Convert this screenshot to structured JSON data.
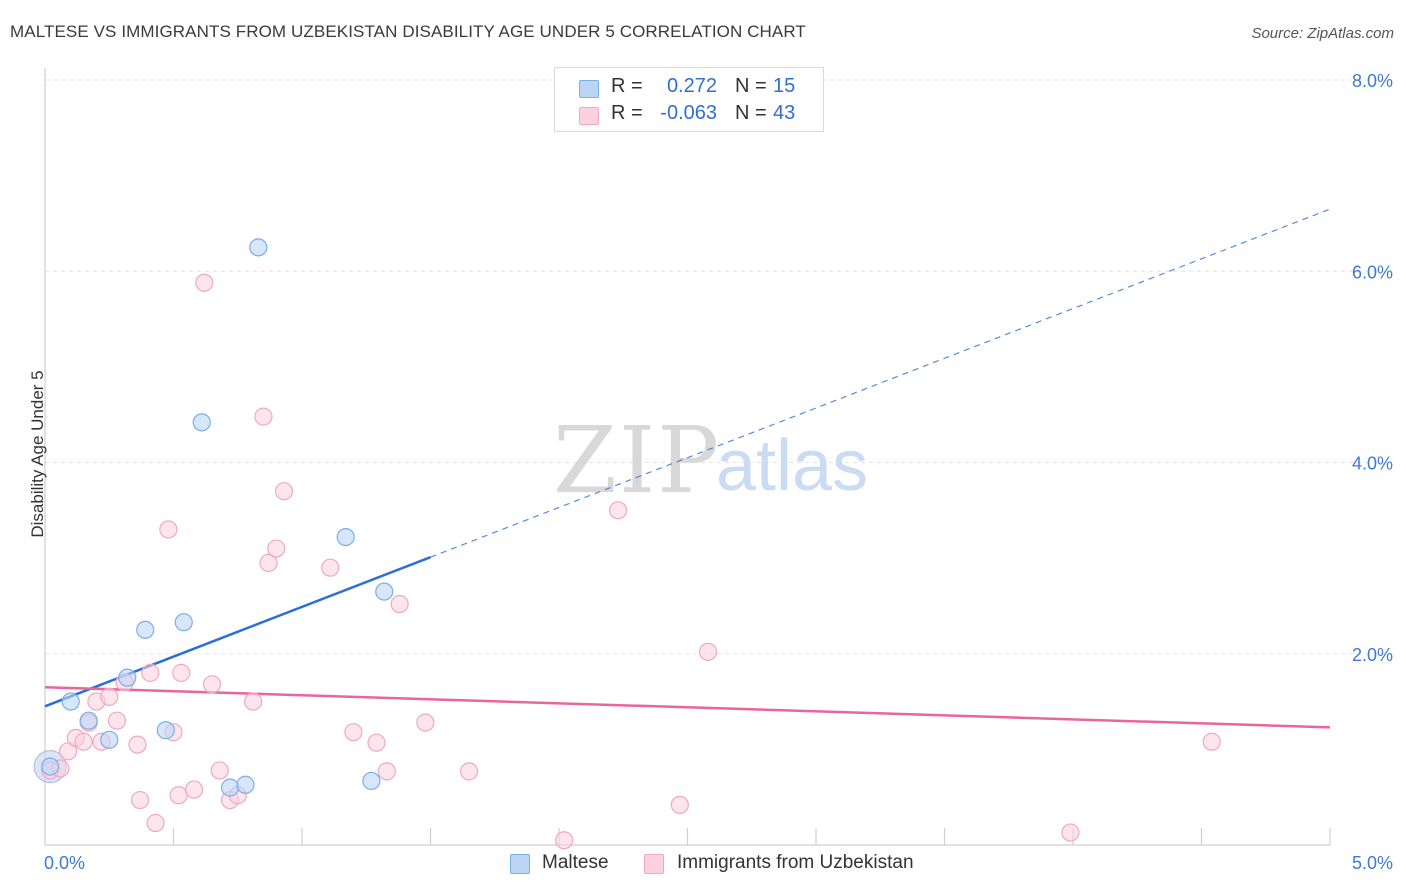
{
  "title": "MALTESE VS IMMIGRANTS FROM UZBEKISTAN DISABILITY AGE UNDER 5 CORRELATION CHART",
  "source": "Source: ZipAtlas.com",
  "watermark": {
    "zip": "ZIP",
    "atlas": "atlas"
  },
  "legend_top": {
    "rows": [
      {
        "r_label": "R =",
        "r_value": "0.272",
        "n_label": "N =",
        "n_value": "15"
      },
      {
        "r_label": "R =",
        "r_value": "-0.063",
        "n_label": "N =",
        "n_value": "43"
      }
    ]
  },
  "legend_bottom": {
    "items": [
      "Maltese",
      "Immigrants from Uzbekistan"
    ]
  },
  "chart_data": {
    "type": "scatter",
    "title": "MALTESE VS IMMIGRANTS FROM UZBEKISTAN DISABILITY AGE UNDER 5 CORRELATION CHART",
    "ylabel": "Disability Age Under 5",
    "xlabel": "",
    "xlim": [
      0,
      5
    ],
    "ylim": [
      0,
      8
    ],
    "x_tick_labels": [
      "0.0%",
      "5.0%"
    ],
    "y_tick_labels": [
      "2.0%",
      "4.0%",
      "6.0%",
      "8.0%"
    ],
    "y_ticks": [
      2,
      4,
      6,
      8
    ],
    "grid": true,
    "legend_position": "top-center",
    "colors": {
      "maltese": "#7aaee8",
      "maltese_line": "#2a6fd6",
      "uzbek": "#f0a8c0",
      "uzbek_line": "#e8669a",
      "accent_text": "#2f6fd0"
    },
    "series": [
      {
        "name": "Maltese",
        "r": 0.272,
        "n": 15,
        "points": [
          [
            0.02,
            0.82
          ],
          [
            0.1,
            1.5
          ],
          [
            0.17,
            1.3
          ],
          [
            0.25,
            1.1
          ],
          [
            0.32,
            1.75
          ],
          [
            0.39,
            2.25
          ],
          [
            0.47,
            1.2
          ],
          [
            0.54,
            2.33
          ],
          [
            0.61,
            4.42
          ],
          [
            0.72,
            0.6
          ],
          [
            0.78,
            0.63
          ],
          [
            0.83,
            6.25
          ],
          [
            1.17,
            3.22
          ],
          [
            1.27,
            0.67
          ],
          [
            1.32,
            2.65
          ]
        ],
        "trend": {
          "x_solid": [
            0,
            1.5
          ],
          "x_dashed": [
            1.5,
            5.0
          ],
          "y_at_0": 1.45,
          "y_at_5": 6.65
        }
      },
      {
        "name": "Immigrants from Uzbekistan",
        "r": -0.063,
        "n": 43,
        "points": [
          [
            0.02,
            0.78
          ],
          [
            0.06,
            0.8
          ],
          [
            0.09,
            0.98
          ],
          [
            0.12,
            1.12
          ],
          [
            0.15,
            1.08
          ],
          [
            0.17,
            1.28
          ],
          [
            0.2,
            1.5
          ],
          [
            0.22,
            1.08
          ],
          [
            0.25,
            1.55
          ],
          [
            0.28,
            1.3
          ],
          [
            0.31,
            1.7
          ],
          [
            0.36,
            1.05
          ],
          [
            0.37,
            0.47
          ],
          [
            0.41,
            1.8
          ],
          [
            0.43,
            0.23
          ],
          [
            0.48,
            3.3
          ],
          [
            0.5,
            1.18
          ],
          [
            0.52,
            0.52
          ],
          [
            0.53,
            1.8
          ],
          [
            0.58,
            0.58
          ],
          [
            0.62,
            5.88
          ],
          [
            0.65,
            1.68
          ],
          [
            0.68,
            0.78
          ],
          [
            0.72,
            0.47
          ],
          [
            0.75,
            0.52
          ],
          [
            0.81,
            1.5
          ],
          [
            0.85,
            4.48
          ],
          [
            0.87,
            2.95
          ],
          [
            0.9,
            3.1
          ],
          [
            0.93,
            3.7
          ],
          [
            1.11,
            2.9
          ],
          [
            1.2,
            1.18
          ],
          [
            1.29,
            1.07
          ],
          [
            1.33,
            0.77
          ],
          [
            1.38,
            2.52
          ],
          [
            1.48,
            1.28
          ],
          [
            1.65,
            0.77
          ],
          [
            2.02,
            0.05
          ],
          [
            2.23,
            3.5
          ],
          [
            2.47,
            0.42
          ],
          [
            2.58,
            2.02
          ],
          [
            3.99,
            0.13
          ],
          [
            4.54,
            1.08
          ]
        ],
        "trend": {
          "x_solid": [
            0,
            5.0
          ],
          "y_at_0": 1.65,
          "y_at_5": 1.23
        }
      }
    ]
  }
}
